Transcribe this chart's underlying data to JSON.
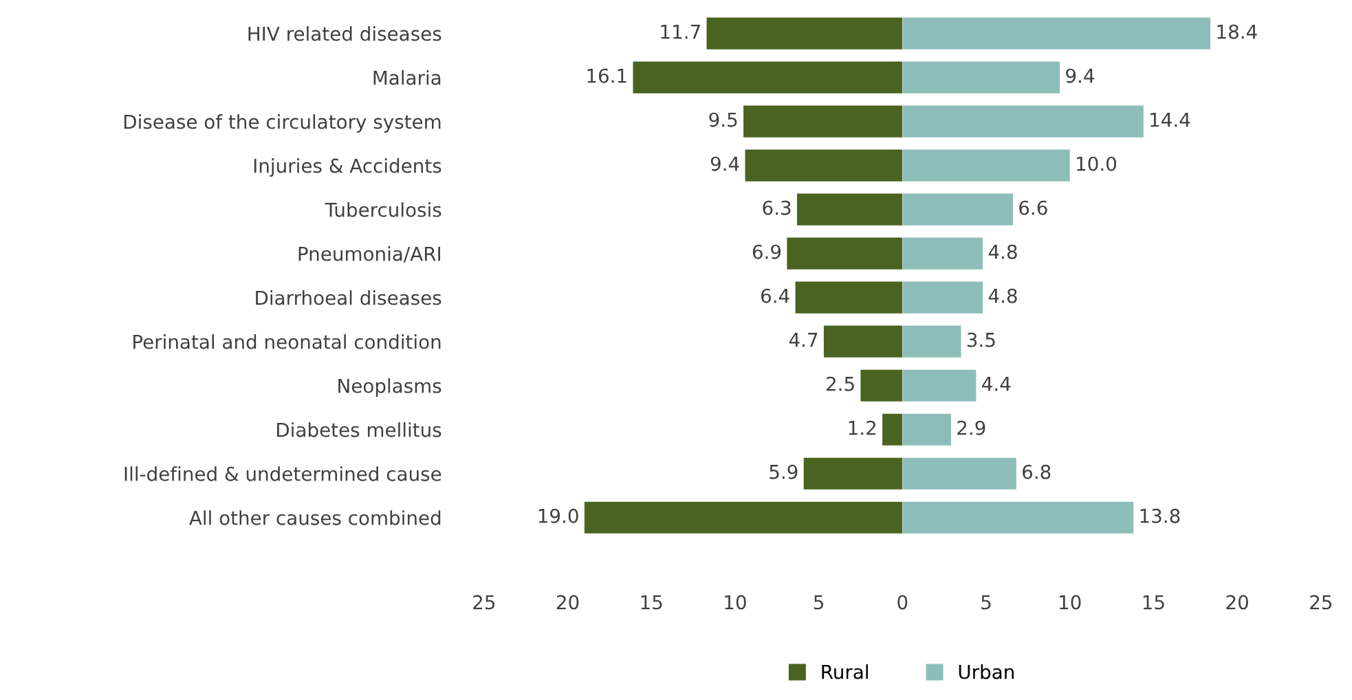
{
  "chart_data": [
    {
      "type": "bar",
      "orientation": "horizontal",
      "categories": [
        "HIV related diseases",
        "Malaria",
        "Disease of the circulatory system",
        "Injuries & Accidents",
        "Tuberculosis",
        "Pneumonia/ARI",
        "Diarrhoeal diseases",
        "Perinatal and neonatal condition",
        "Neoplasms",
        "Diabetes mellitus",
        "Ill-defined & undetermined cause",
        "All other causes combined"
      ],
      "series": [
        {
          "name": "Rural",
          "color": "#4b6320",
          "values": [
            11.7,
            16.1,
            9.5,
            9.4,
            6.3,
            6.9,
            6.4,
            4.7,
            2.5,
            1.2,
            5.9,
            19.0
          ],
          "value_labels": [
            "11.7",
            "16.1",
            "9.5",
            "9.4",
            "6.3",
            "6.9",
            "6.4",
            "4.7",
            "2.5",
            "1.2",
            "5.9",
            "19.0"
          ]
        }
      ],
      "xlim": [
        25,
        0
      ],
      "xticks": [
        25,
        20,
        15,
        10,
        5
      ],
      "grid": false,
      "legend": "bottom"
    },
    {
      "type": "bar",
      "orientation": "horizontal",
      "series": [
        {
          "name": "Urban",
          "color": "#8dbdb8",
          "values": [
            18.4,
            9.4,
            14.4,
            10.0,
            6.6,
            4.8,
            4.8,
            3.5,
            4.4,
            2.9,
            6.8,
            13.8
          ],
          "value_labels": [
            "18.4",
            "9.4",
            "14.4",
            "10.0",
            "6.6",
            "4.8",
            "4.8",
            "3.5",
            "4.4",
            "2.9",
            "6.8",
            "13.8"
          ]
        }
      ],
      "xlim": [
        0,
        25
      ],
      "xticks": [
        0,
        5,
        10,
        15,
        20,
        25
      ],
      "tick_labels": "x",
      "grid": false,
      "legend": "bottom"
    }
  ]
}
